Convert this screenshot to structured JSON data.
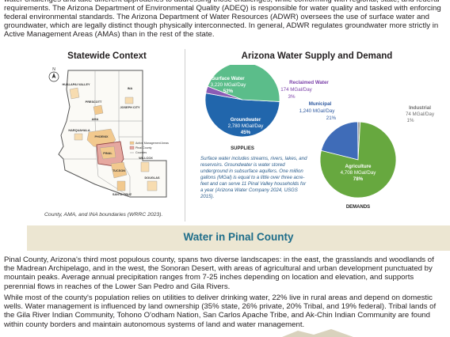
{
  "intro": "water challenges and take different approaches to addressing those challenges, while conforming with regional, state, and federal requirements. The Arizona Department of Environmental Quality (ADEQ) is responsible for water quality and tasked with enforcing federal environmental standards. The Arizona Department of Water Resources (ADWR) oversees the use of surface water and groundwater, which are legally distinct though physically interconnected. In general, ADWR regulates groundwater more strictly in Active Management Areas (AMAs) than in the rest of the state.",
  "statewide": {
    "title": "Statewide Context",
    "north_arrow": "N",
    "labels": {
      "hualapai": "HUALAPAI VALLEY",
      "joseph_city": "JOSEPH CITY",
      "ina": "INA",
      "prescott": "PRESCOTT",
      "ama": "AMA",
      "phoenix": "PHOENIX",
      "harquahala": "HARQUAHALA",
      "pinal": "PINAL",
      "tucson": "TUCSON",
      "willcox": "WILLCOX",
      "douglas": "DOUGLAS",
      "santa_cruz": "SANTA CRUZ"
    },
    "legend": [
      "Active Management Areas",
      "Pinal County",
      "Counties"
    ],
    "caption": "County, AMA, and INA boundaries (WRRC 2023)."
  },
  "supply_demand": {
    "title": "Arizona Water Supply and Demand",
    "supplies": {
      "label": "SUPPLIES",
      "slices": [
        {
          "name": "Surface Water",
          "value": "3,220 MGal/Day",
          "pct": "52%",
          "fraction": 0.52,
          "color": "#2166ac"
        },
        {
          "name": "Reclaimed Water",
          "value": "174 MGal/Day",
          "pct": "3%",
          "fraction": 0.03,
          "color": "#8b5cb5"
        },
        {
          "name": "Groundwater",
          "value": "2,780 MGal/Day",
          "pct": "45%",
          "fraction": 0.45,
          "color": "#5bbd8a"
        }
      ]
    },
    "demands": {
      "label": "DEMANDS",
      "slices": [
        {
          "name": "Municipal",
          "value": "1,240 MGal/Day",
          "pct": "21%",
          "fraction": 0.21,
          "color": "#3f6cb8"
        },
        {
          "name": "Industrial",
          "value": "74 MGal/Day",
          "pct": "1%",
          "fraction": 0.01,
          "color": "#9a9a9a"
        },
        {
          "name": "Agriculture",
          "value": "4,708 MGal/Day",
          "pct": "78%",
          "fraction": 0.78,
          "color": "#67a83f"
        }
      ]
    },
    "note": "Surface water includes streams, rivers, lakes, and reservoirs. Groundwater is water stored underground in subsurface aquifers. One million gallons (MGal) is equal to a little over three acre-feet and can serve 11 Pinal Valley households for a year (Arizona Water Company 2024, USGS 2015)."
  },
  "section": {
    "title": "Water in Pinal County",
    "para1": "Pinal County, Arizona's third most populous county, spans two diverse landscapes: in the east, the grasslands and woodlands of the Madrean Archipelago, and in the west, the Sonoran Desert, with areas of agricultural and urban development punctuated by mountain peaks. Average annual precipitation ranges from 7-25 inches depending on location and elevation, and supports perennial flows in reaches of the Lower San Pedro and Gila Rivers.",
    "para2": "While most of the county's population relies on utilities to deliver drinking water, 22% live in rural areas and depend on domestic wells. Water management is influenced by land ownership (35% state, 26% private, 20% Tribal, and 19% federal). Tribal lands of the Gila River Indian Community, Tohono O'odham Nation, San Carlos Apache Tribe, and Ak-Chin Indian Community are found within county borders and maintain autonomous systems of land and water management."
  },
  "colors": {
    "band": "#ece6d2",
    "section_title": "#1e6d8a",
    "ama_fill": "#f2c98e",
    "pinal_fill": "#e6a8a0",
    "map_outline": "#555555"
  }
}
